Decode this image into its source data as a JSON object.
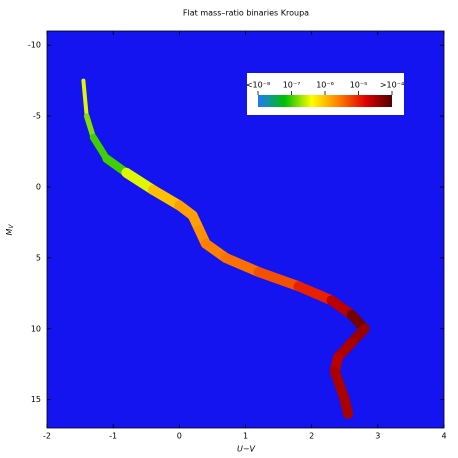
{
  "chart_data": {
    "type": "density",
    "title": "Flat mass–ratio binaries   Kroupa",
    "xlabel": "U−V",
    "ylabel": "M",
    "ylabel_sub": "V",
    "xlim": [
      -2,
      4
    ],
    "xticks": [
      -2,
      -1,
      0,
      1,
      2,
      3,
      4
    ],
    "ylim": [
      -11,
      17
    ],
    "yticks": [
      -10,
      -5,
      0,
      5,
      10,
      15
    ],
    "y_inverted": true,
    "background": "#1414f0",
    "x": [
      -1.45,
      -1.4,
      -1.3,
      -1.1,
      -0.8,
      -0.4,
      0,
      0.2,
      0.3,
      0.4,
      0.7,
      1.2,
      1.8,
      2.3,
      2.6,
      2.8,
      2.6,
      2.4,
      2.35,
      2.5,
      2.55
    ],
    "values": [
      -7.5,
      -5,
      -3.5,
      -2,
      -1,
      0.2,
      1.3,
      2,
      3,
      4,
      5,
      6,
      7,
      8,
      9,
      10,
      11,
      12,
      13,
      15,
      16
    ],
    "density": [
      -6.3,
      -6.5,
      -6.8,
      -7,
      -7,
      -6.5,
      -6,
      -5.8,
      -5.8,
      -5.7,
      -5.6,
      -5.5,
      -5.3,
      -5,
      -4.6,
      -4.2,
      -4.4,
      -4.5,
      -4.6,
      -4.5,
      -4.5
    ],
    "clim": [
      -8,
      -4
    ],
    "colors": [
      "#1e78ff",
      "#00c000",
      "#ffff00",
      "#ff8000",
      "#e00000",
      "#500000"
    ],
    "cticks": [
      {
        "value": -8,
        "label": "<10⁻⁸"
      },
      {
        "value": -7,
        "label": "10⁻⁷"
      },
      {
        "value": -6,
        "label": "10⁻⁶"
      },
      {
        "value": -5,
        "label": "10⁻⁵"
      },
      {
        "value": -4,
        "label": ">10⁻⁴"
      }
    ]
  }
}
